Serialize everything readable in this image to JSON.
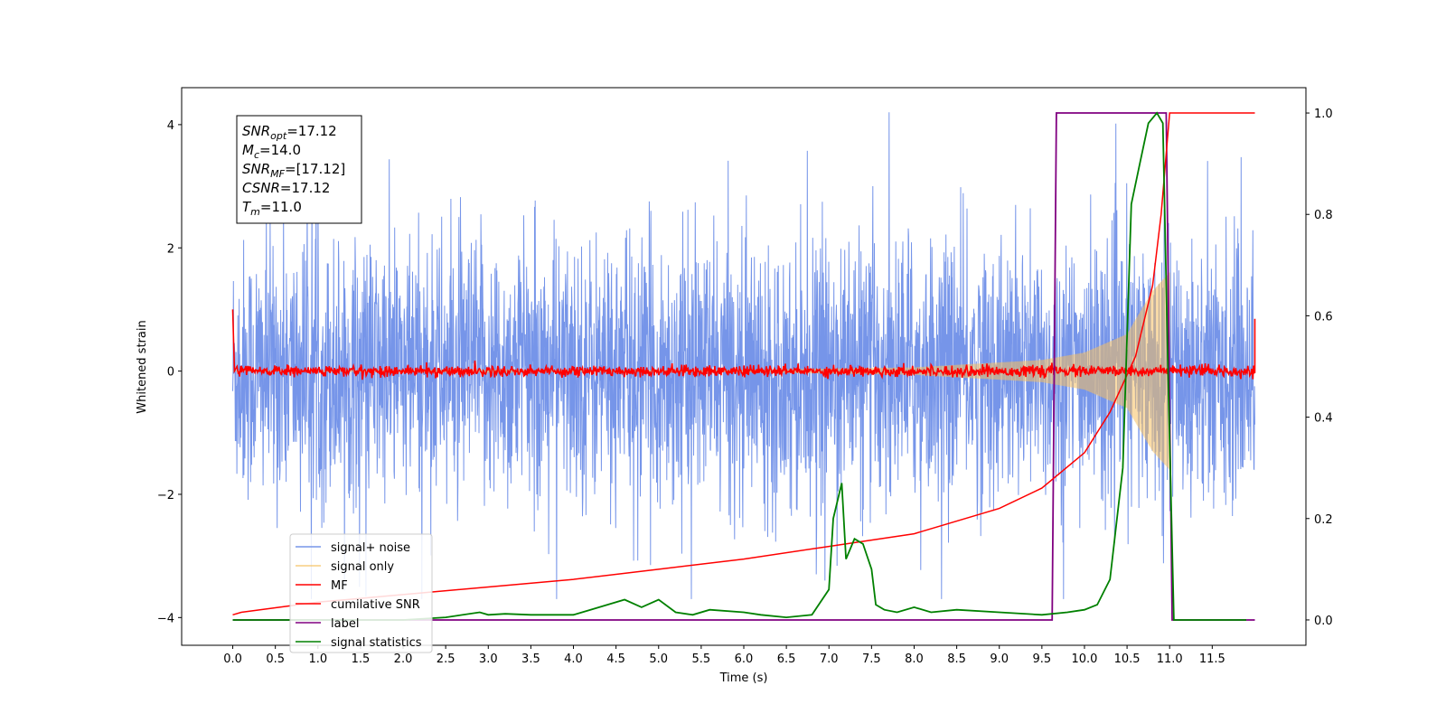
{
  "colors": {
    "signal_noise": "#6f8fe8",
    "signal_only": "#f5c060",
    "mf": "#ff0000",
    "cumulative_snr": "#ff0000",
    "label": "#800080",
    "signal_statistics": "#008000"
  },
  "info_box": {
    "lines": [
      {
        "name": "SNR",
        "sub": "opt",
        "value": "=17.12"
      },
      {
        "name": "M",
        "sub": "c",
        "value": "=14.0"
      },
      {
        "name": "SNR",
        "sub": "MF",
        "value": "=[17.12]"
      },
      {
        "name": "CSNR",
        "sub": "",
        "value": "=17.12"
      },
      {
        "name": "T",
        "sub": "m",
        "value": "=11.0"
      }
    ]
  },
  "chart_data": {
    "type": "line",
    "title": "",
    "xlabel": "Time (s)",
    "ylabel": "Whitened strain",
    "y2label": "",
    "xlim": [
      -0.6,
      12.6
    ],
    "ylim": [
      -4.45,
      4.6
    ],
    "y2lim": [
      -0.05,
      1.05
    ],
    "x_ticks": [
      "0.0",
      "0.5",
      "1.0",
      "1.5",
      "2.0",
      "2.5",
      "3.0",
      "3.5",
      "4.0",
      "4.5",
      "5.0",
      "5.5",
      "6.0",
      "6.5",
      "7.0",
      "7.5",
      "8.0",
      "8.5",
      "9.0",
      "9.5",
      "10.0",
      "10.5",
      "11.0",
      "11.5"
    ],
    "y_ticks": [
      "-4",
      "-2",
      "0",
      "2",
      "4"
    ],
    "y2_ticks": [
      "0.0",
      "0.2",
      "0.4",
      "0.6",
      "0.8",
      "1.0"
    ],
    "legend_position": "lower-left",
    "series": [
      {
        "name": "signal+ noise",
        "axis": "left",
        "style": "noise",
        "description_range": [
          -3.7,
          4.2
        ],
        "x_range": [
          0.0,
          12.0
        ]
      },
      {
        "name": "signal only",
        "axis": "left",
        "style": "chirp",
        "x_range": [
          0.0,
          11.0
        ],
        "envelope": {
          "x": [
            0.0,
            6.0,
            8.0,
            9.5,
            10.0,
            10.5,
            10.8,
            11.0
          ],
          "y": [
            0.0,
            0.02,
            0.06,
            0.18,
            0.3,
            0.6,
            1.3,
            1.6
          ]
        }
      },
      {
        "name": "MF",
        "axis": "left",
        "style": "mf",
        "x": [
          0.0,
          0.02,
          0.05,
          12.0,
          12.0
        ],
        "y": [
          1.0,
          0.0,
          0.0,
          0.0,
          0.85
        ]
      },
      {
        "name": "cumilative SNR",
        "axis": "right",
        "x": [
          0.0,
          0.1,
          1.0,
          2.0,
          3.0,
          4.0,
          5.0,
          6.0,
          7.0,
          8.0,
          9.0,
          9.5,
          10.0,
          10.3,
          10.6,
          10.8,
          10.9,
          11.0,
          12.0
        ],
        "y": [
          0.01,
          0.015,
          0.035,
          0.05,
          0.065,
          0.08,
          0.1,
          0.12,
          0.145,
          0.17,
          0.22,
          0.26,
          0.33,
          0.41,
          0.52,
          0.66,
          0.8,
          1.0,
          1.0
        ]
      },
      {
        "name": "label",
        "axis": "right",
        "x": [
          0.0,
          9.62,
          9.67,
          10.96,
          11.03,
          12.0
        ],
        "y": [
          0.0,
          0.0,
          1.0,
          1.0,
          0.0,
          0.0
        ]
      },
      {
        "name": "signal statistics",
        "axis": "right",
        "x": [
          0.0,
          1.0,
          2.0,
          2.5,
          2.9,
          3.0,
          3.2,
          3.5,
          4.0,
          4.2,
          4.4,
          4.6,
          4.8,
          5.0,
          5.2,
          5.4,
          5.6,
          6.0,
          6.2,
          6.5,
          6.8,
          7.0,
          7.05,
          7.15,
          7.2,
          7.3,
          7.4,
          7.5,
          7.55,
          7.65,
          7.8,
          8.0,
          8.2,
          8.5,
          9.0,
          9.5,
          9.8,
          10.0,
          10.15,
          10.3,
          10.45,
          10.55,
          10.65,
          10.75,
          10.85,
          10.92,
          10.98,
          11.05,
          11.1,
          11.5,
          11.9
        ],
        "y": [
          0.0,
          0.0,
          0.0,
          0.005,
          0.015,
          0.01,
          0.012,
          0.01,
          0.01,
          0.02,
          0.03,
          0.04,
          0.025,
          0.04,
          0.015,
          0.01,
          0.02,
          0.015,
          0.01,
          0.005,
          0.01,
          0.06,
          0.2,
          0.27,
          0.12,
          0.16,
          0.15,
          0.1,
          0.03,
          0.02,
          0.015,
          0.025,
          0.015,
          0.02,
          0.015,
          0.01,
          0.015,
          0.02,
          0.03,
          0.08,
          0.3,
          0.82,
          0.9,
          0.98,
          1.0,
          0.98,
          0.5,
          0.0,
          0.0,
          0.0,
          0.0
        ]
      }
    ]
  }
}
